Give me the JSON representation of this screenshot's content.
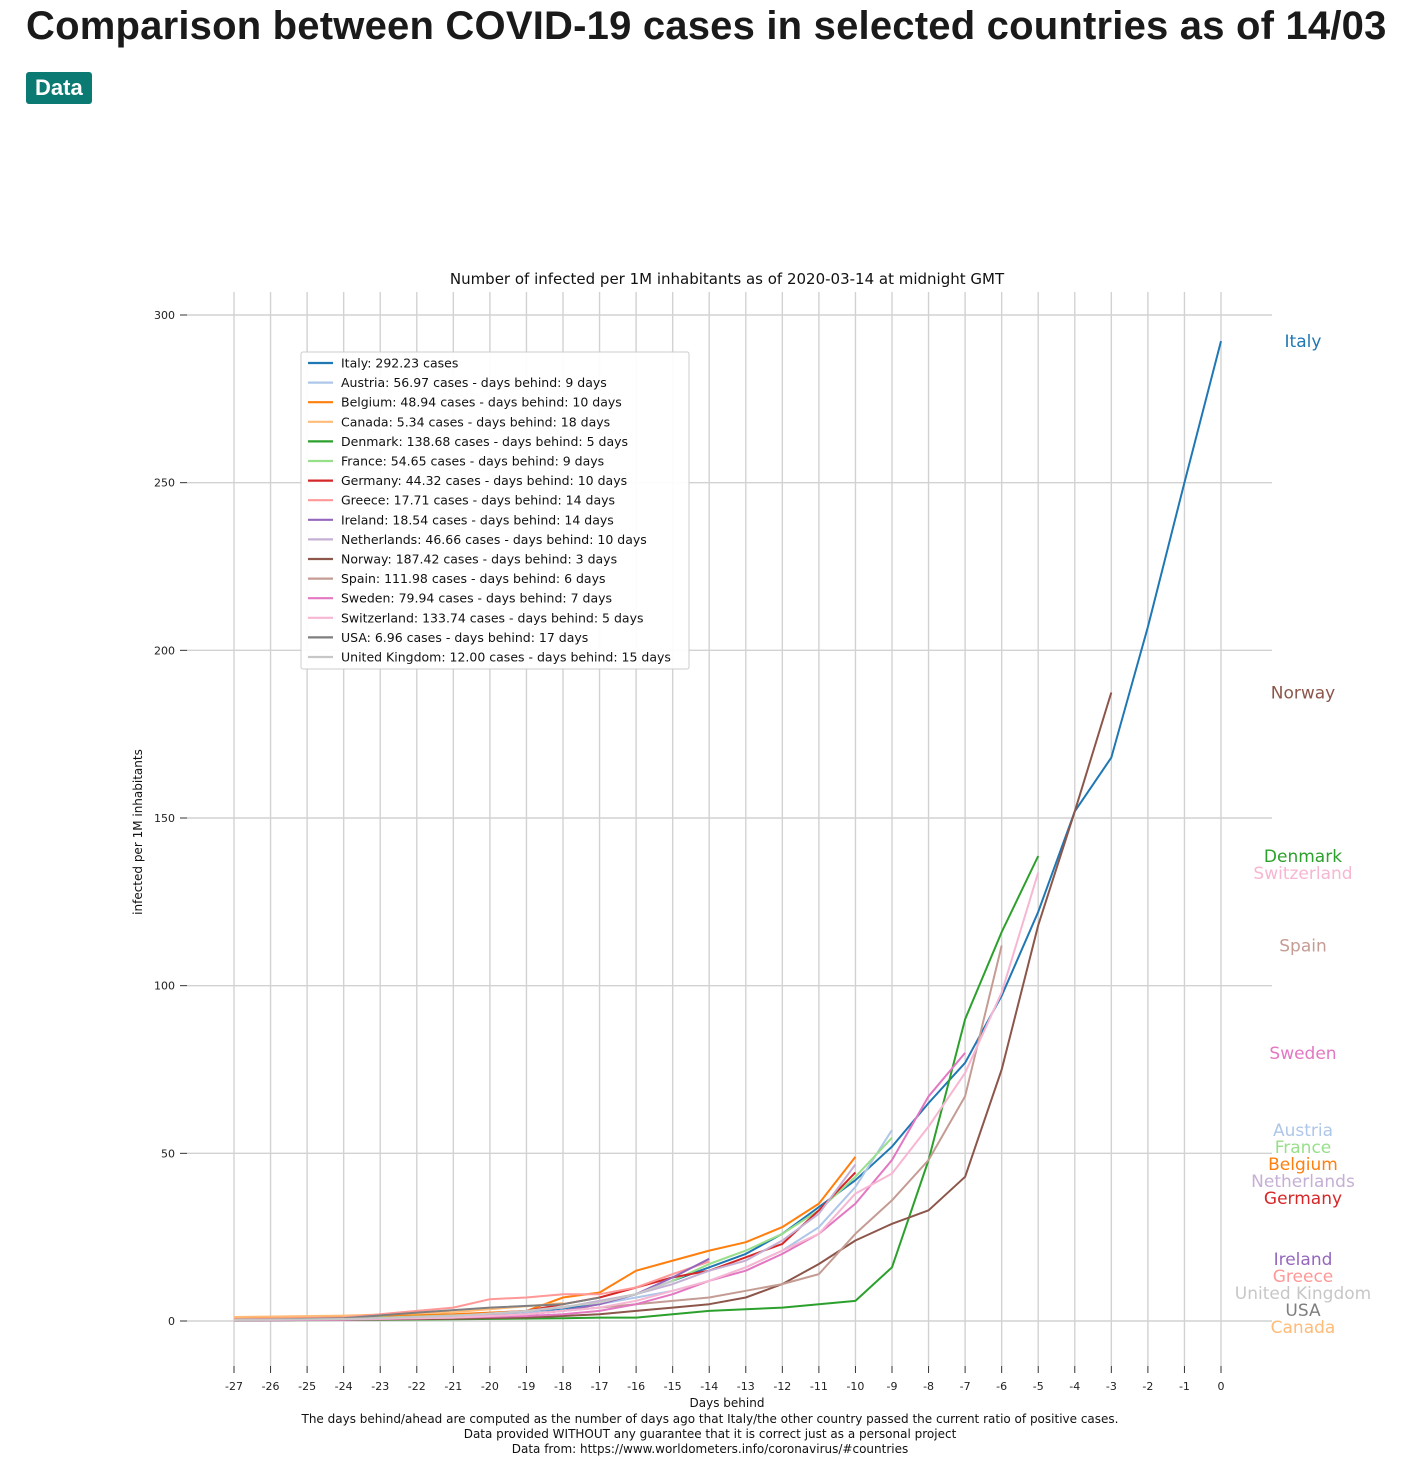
{
  "header": {
    "title": "Comparison between COVID-19 cases in selected countries as of 14/03",
    "badge": "Data"
  },
  "chart_data": {
    "type": "line",
    "title": "Number of infected per 1M inhabitants as of 2020-03-14 at midnight GMT",
    "xlabel": "Days behind",
    "ylabel": "infected per 1M inhabitants",
    "xlim": [
      -27,
      0
    ],
    "ylim": [
      0,
      300
    ],
    "xticks": [
      -27,
      -26,
      -25,
      -24,
      -23,
      -22,
      -21,
      -20,
      -19,
      -18,
      -17,
      -16,
      -15,
      -14,
      -13,
      -12,
      -11,
      -10,
      -9,
      -8,
      -7,
      -6,
      -5,
      -4,
      -3,
      -2,
      -1,
      0
    ],
    "yticks": [
      0,
      50,
      100,
      150,
      200,
      250,
      300
    ],
    "grid": true,
    "legend_position": "upper-left",
    "footnotes": [
      "The days behind/ahead are computed as the number of days ago that Italy/the other country passed the current ratio of positive cases.",
      "Data provided WITHOUT any guarantee that it is correct just as a personal project",
      "Data from: https://www.worldometers.info/coronavirus/#countries"
    ],
    "series": [
      {
        "name": "Italy",
        "legend": "Italy: 292.23 cases",
        "color": "#1f77b4",
        "x": [
          -27,
          -24,
          -21,
          -19,
          -17,
          -16,
          -15,
          -14,
          -13,
          -12,
          -11,
          -10,
          -9,
          -8,
          -7,
          -6,
          -5,
          -4,
          -3,
          -2,
          -1,
          0
        ],
        "y": [
          0.3,
          0.5,
          1.5,
          2.5,
          5,
          8,
          12,
          16,
          20,
          26,
          34,
          42,
          52,
          65,
          77,
          97,
          122,
          152,
          168,
          207,
          250,
          292.23
        ]
      },
      {
        "name": "Austria",
        "legend": "Austria: 56.97 cases - days behind: 9 days",
        "color": "#aec7e8",
        "x": [
          -27,
          -23,
          -20,
          -18,
          -17,
          -16,
          -15,
          -14,
          -13,
          -12,
          -11,
          -10,
          -9
        ],
        "y": [
          0.2,
          1,
          2,
          3,
          5,
          7,
          9,
          12,
          16,
          21,
          28,
          40,
          56.97
        ]
      },
      {
        "name": "Belgium",
        "legend": "Belgium: 48.94 cases - days behind: 10 days",
        "color": "#ff7f0e",
        "x": [
          -27,
          -25,
          -23,
          -21,
          -19,
          -18,
          -17,
          -16,
          -15,
          -14,
          -13,
          -12,
          -11,
          -10
        ],
        "y": [
          1,
          1,
          1.5,
          2,
          3,
          7,
          8.5,
          15,
          18,
          21,
          23.5,
          28,
          35,
          48.94
        ]
      },
      {
        "name": "Canada",
        "legend": "Canada: 5.34 cases - days behind: 18 days",
        "color": "#ffbb78",
        "x": [
          -27,
          -24,
          -21,
          -18
        ],
        "y": [
          1.2,
          1.6,
          2.6,
          5.34
        ]
      },
      {
        "name": "Denmark",
        "legend": "Denmark: 138.68 cases - days behind: 5 days",
        "color": "#2ca02c",
        "x": [
          -27,
          -24,
          -21,
          -18,
          -17,
          -16,
          -15,
          -14,
          -13,
          -12,
          -11,
          -10,
          -9,
          -8,
          -7,
          -6,
          -5
        ],
        "y": [
          0.2,
          0.3,
          0.5,
          0.8,
          1,
          1,
          2,
          3,
          3.5,
          4,
          5,
          6,
          16,
          48,
          90,
          116,
          138.68
        ]
      },
      {
        "name": "France",
        "legend": "France: 54.65 cases - days behind: 9 days",
        "color": "#98df8a",
        "x": [
          -27,
          -23,
          -20,
          -18,
          -17,
          -16,
          -15,
          -14,
          -13,
          -12,
          -11,
          -10,
          -9
        ],
        "y": [
          0.5,
          1,
          2,
          4,
          6,
          8,
          12,
          17,
          21,
          26,
          33,
          43,
          54.65
        ]
      },
      {
        "name": "Germany",
        "legend": "Germany: 44.32 cases - days behind: 10 days",
        "color": "#d62728",
        "x": [
          -27,
          -24,
          -21,
          -19,
          -18,
          -17,
          -16,
          -15,
          -14,
          -13,
          -12,
          -11,
          -10
        ],
        "y": [
          0.3,
          0.5,
          1.5,
          3,
          5,
          7,
          10,
          13,
          15,
          19,
          23,
          33,
          44.32
        ]
      },
      {
        "name": "Greece",
        "legend": "Greece: 17.71 cases - days behind: 14 days",
        "color": "#ff9896",
        "x": [
          -27,
          -24,
          -22,
          -21,
          -20,
          -19,
          -18,
          -17,
          -16,
          -15,
          -14
        ],
        "y": [
          0.5,
          1,
          3,
          4,
          6.5,
          7,
          8,
          8,
          10,
          14,
          17.71
        ]
      },
      {
        "name": "Ireland",
        "legend": "Ireland: 18.54 cases - days behind: 14 days",
        "color": "#9467bd",
        "x": [
          -27,
          -24,
          -21,
          -19,
          -18,
          -17,
          -16,
          -15,
          -14
        ],
        "y": [
          0.2,
          0.4,
          1,
          2,
          3,
          5,
          8,
          13,
          18.54
        ]
      },
      {
        "name": "Netherlands",
        "legend": "Netherlands: 46.66 cases - days behind: 10 days",
        "color": "#c5b0d5",
        "x": [
          -27,
          -23,
          -20,
          -18,
          -17,
          -16,
          -15,
          -14,
          -13,
          -12,
          -11,
          -10
        ],
        "y": [
          0.3,
          0.8,
          2,
          4,
          6,
          8,
          11,
          15,
          18,
          24,
          32,
          46.66
        ]
      },
      {
        "name": "Norway",
        "legend": "Norway: 187.42 cases - days behind: 3 days",
        "color": "#8c564b",
        "x": [
          -27,
          -24,
          -21,
          -19,
          -18,
          -17,
          -16,
          -15,
          -14,
          -13,
          -12,
          -11,
          -10,
          -9,
          -8,
          -7,
          -6,
          -5,
          -4,
          -3
        ],
        "y": [
          0.2,
          0.4,
          0.7,
          1,
          1.5,
          2,
          3,
          4,
          5,
          7,
          11,
          17,
          24,
          29,
          33,
          43,
          75,
          118,
          152,
          187.42
        ]
      },
      {
        "name": "Spain",
        "legend": "Spain: 111.98 cases - days behind: 6 days",
        "color": "#c49c94",
        "x": [
          -27,
          -24,
          -21,
          -19,
          -18,
          -17,
          -16,
          -15,
          -14,
          -13,
          -12,
          -11,
          -10,
          -9,
          -8,
          -7,
          -6
        ],
        "y": [
          0.3,
          0.5,
          1,
          2,
          3,
          4,
          5,
          6,
          7,
          9,
          11,
          14,
          26,
          36,
          48,
          67,
          111.98
        ]
      },
      {
        "name": "Sweden",
        "legend": "Sweden: 79.94 cases - days behind: 7 days",
        "color": "#e377c2",
        "x": [
          -27,
          -24,
          -21,
          -19,
          -18,
          -17,
          -16,
          -15,
          -14,
          -13,
          -12,
          -11,
          -10,
          -9,
          -8,
          -7
        ],
        "y": [
          0.2,
          0.4,
          1,
          1.5,
          2,
          3,
          5,
          8,
          12,
          15,
          20,
          26,
          35,
          48,
          67,
          79.94
        ]
      },
      {
        "name": "Switzerland",
        "legend": "Switzerland: 133.74 cases - days behind: 5 days",
        "color": "#f7b6d2",
        "x": [
          -27,
          -24,
          -21,
          -19,
          -18,
          -17,
          -16,
          -15,
          -14,
          -13,
          -12,
          -11,
          -10,
          -9,
          -8,
          -7,
          -6,
          -5
        ],
        "y": [
          0.3,
          0.5,
          1,
          2,
          3,
          4,
          6,
          9,
          12,
          16,
          21,
          26,
          38,
          44,
          58,
          74,
          98,
          133.74
        ]
      },
      {
        "name": "USA",
        "legend": "USA: 6.96 cases - days behind: 17 days",
        "color": "#7f7f7f",
        "x": [
          -27,
          -24,
          -22,
          -20,
          -18,
          -17
        ],
        "y": [
          0.3,
          0.8,
          2.5,
          4,
          5,
          6.96
        ]
      },
      {
        "name": "United Kingdom",
        "legend": "United Kingdom: 12.00 cases - days behind: 15 days",
        "color": "#c7c7c7",
        "x": [
          -27,
          -24,
          -21,
          -19,
          -17,
          -16,
          -15
        ],
        "y": [
          0.3,
          0.6,
          1.5,
          3,
          5.5,
          8,
          12.0
        ]
      }
    ]
  }
}
